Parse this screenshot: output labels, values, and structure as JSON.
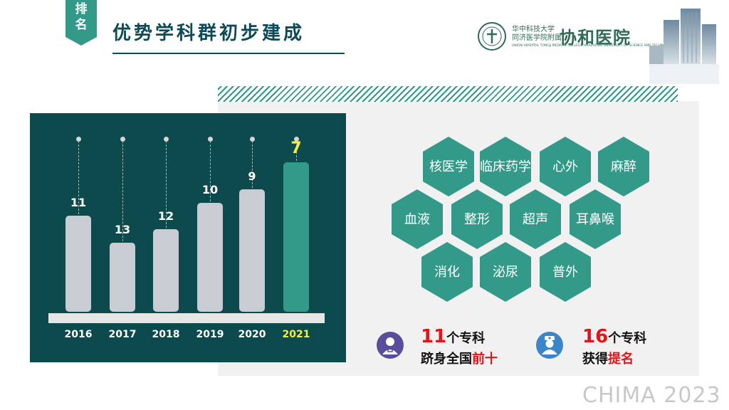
{
  "header": {
    "tag": [
      "排",
      "名"
    ],
    "title": "优势学科群初步建成"
  },
  "logo": {
    "cn_line1": "华中科技大学",
    "cn_line2": "同济医学院附属",
    "en_line": "UNION HOSPITAL TONGJI MEDICAL COLLEGE HUAZHONG UNIVERSITY OF SCIENCE AND TECHNOLOGY",
    "script": "协和医院"
  },
  "colors": {
    "teal_dark": "#0c4a4d",
    "teal": "#339a8a",
    "highlight": "#f7ef3b",
    "red": "#e0161a",
    "bar_gray": "#c9ccd3"
  },
  "chart_data": {
    "type": "bar",
    "categories": [
      "2016",
      "2017",
      "2018",
      "2019",
      "2020",
      "2021"
    ],
    "values": [
      11,
      13,
      12,
      10,
      9,
      7
    ],
    "highlight_category": "2021",
    "reversed_axis": true
  },
  "disciplines": [
    "核医学",
    "临床药学",
    "心外",
    "麻醉",
    "血液",
    "整形",
    "超声",
    "耳鼻喉",
    "消化",
    "泌尿",
    "普外"
  ],
  "stats": [
    {
      "icon": "doctor-icon",
      "number": "11",
      "line1_suffix": "个专科",
      "line2_black": "跻身全国",
      "line2_red": "前十"
    },
    {
      "icon": "nurse-icon",
      "number": "16",
      "line1_suffix": "个专科",
      "line2_black": "获得",
      "line2_red": "提名"
    }
  ],
  "footer": {
    "brand": "CHIMA 2023"
  }
}
